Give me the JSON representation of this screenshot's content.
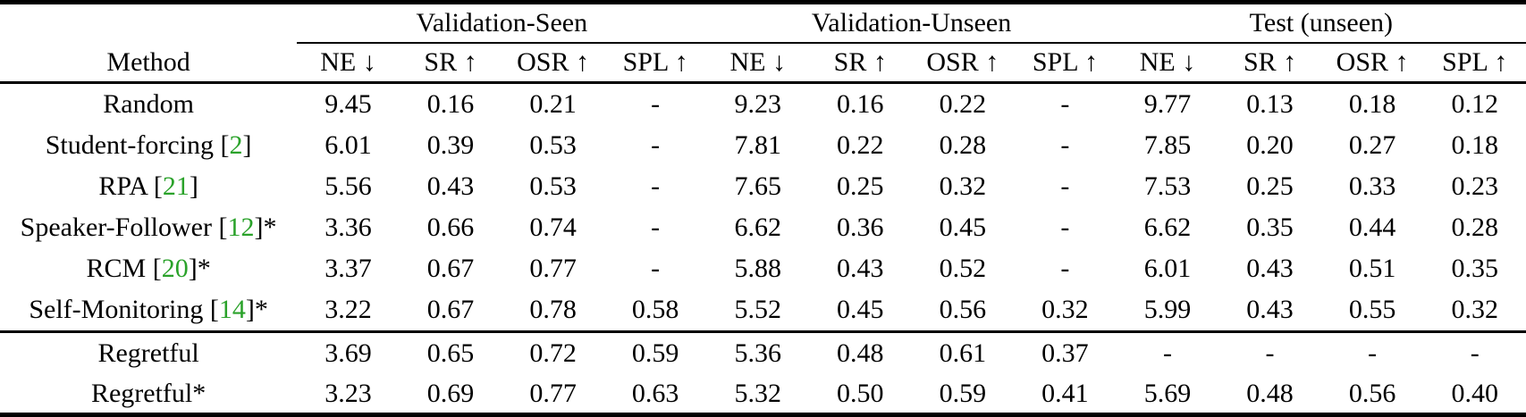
{
  "colors": {
    "citation_green": "#2aa22a",
    "text": "#000000",
    "background": "#ffffff"
  },
  "table": {
    "method_header": "Method",
    "groups": [
      {
        "label": "Validation-Seen"
      },
      {
        "label": "Validation-Unseen"
      },
      {
        "label": "Test (unseen)"
      }
    ],
    "metrics": [
      "NE ↓",
      "SR ↑",
      "OSR ↑",
      "SPL ↑"
    ],
    "rows": [
      {
        "method": "Random",
        "cite": null,
        "star": false,
        "values": [
          "9.45",
          "0.16",
          "0.21",
          "-",
          "9.23",
          "0.16",
          "0.22",
          "-",
          "9.77",
          "0.13",
          "0.18",
          "0.12"
        ],
        "bold": []
      },
      {
        "method": "Student-forcing",
        "cite": "2",
        "star": false,
        "values": [
          "6.01",
          "0.39",
          "0.53",
          "-",
          "7.81",
          "0.22",
          "0.28",
          "-",
          "7.85",
          "0.20",
          "0.27",
          "0.18"
        ],
        "bold": []
      },
      {
        "method": "RPA",
        "cite": "21",
        "star": false,
        "values": [
          "5.56",
          "0.43",
          "0.53",
          "-",
          "7.65",
          "0.25",
          "0.32",
          "-",
          "7.53",
          "0.25",
          "0.33",
          "0.23"
        ],
        "bold": []
      },
      {
        "method": "Speaker-Follower",
        "cite": "12",
        "star": true,
        "values": [
          "3.36",
          "0.66",
          "0.74",
          "-",
          "6.62",
          "0.36",
          "0.45",
          "-",
          "6.62",
          "0.35",
          "0.44",
          "0.28"
        ],
        "bold": []
      },
      {
        "method": "RCM",
        "cite": "20",
        "star": true,
        "values": [
          "3.37",
          "0.67",
          "0.77",
          "-",
          "5.88",
          "0.43",
          "0.52",
          "-",
          "6.01",
          "0.43",
          "0.51",
          "0.35"
        ],
        "bold": []
      },
      {
        "method": "Self-Monitoring",
        "cite": "14",
        "star": true,
        "values": [
          "3.22",
          "0.67",
          "0.78",
          "0.58",
          "5.52",
          "0.45",
          "0.56",
          "0.32",
          "5.99",
          "0.43",
          "0.55",
          "0.32"
        ],
        "bold": [
          0,
          2
        ]
      },
      {
        "method": "Regretful",
        "cite": null,
        "star": false,
        "section_start": true,
        "values": [
          "3.69",
          "0.65",
          "0.72",
          "0.59",
          "5.36",
          "0.48",
          "0.61",
          "0.37",
          "-",
          "-",
          "-",
          "-"
        ],
        "bold": [
          6
        ]
      },
      {
        "method": "Regretful",
        "cite": null,
        "star": true,
        "compact": true,
        "values": [
          "3.23",
          "0.69",
          "0.77",
          "0.63",
          "5.32",
          "0.50",
          "0.59",
          "0.41",
          "5.69",
          "0.48",
          "0.56",
          "0.40"
        ],
        "bold": [
          1,
          3,
          4,
          5,
          7,
          8,
          9,
          10,
          11
        ]
      }
    ]
  }
}
